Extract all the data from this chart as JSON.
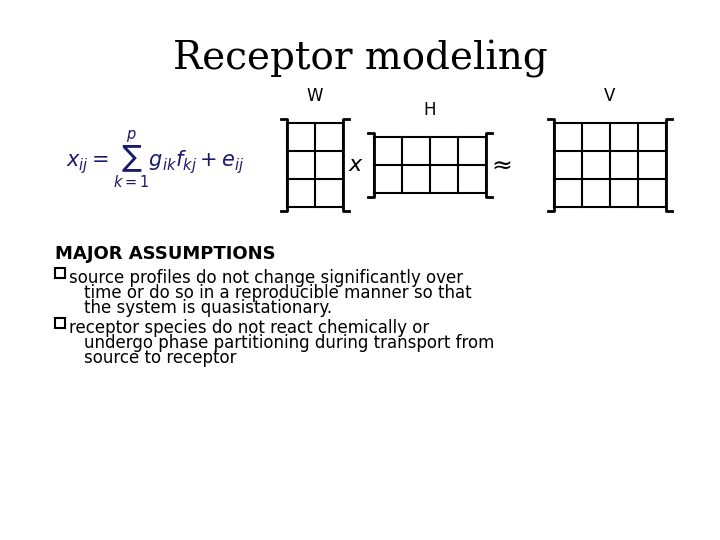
{
  "title": "Receptor modeling",
  "title_fontsize": 28,
  "title_fontfamily": "serif",
  "background_color": "#ffffff",
  "major_assumptions_label": "MAJOR ASSUMPTIONS",
  "bullet1_first": "❖source profiles do not change significantly over",
  "bullet1_rest": [
    "  time or do so in a reproducible manner so that",
    "  the system is quasistationary."
  ],
  "bullet2_first": "❖receptor species do not react chemically or",
  "bullet2_rest": [
    "  undergo phase partitioning during transport from",
    "  source to receptor"
  ],
  "equation": "x_{ij} = \\sum_{k=1}^{p} g_{ik}f_{kj} + e_{ij}",
  "label_W": "W",
  "label_H": "H",
  "label_V": "V",
  "text_color": "#000000",
  "matrix_color": "#000000",
  "eq_color": "#1a1a6e"
}
